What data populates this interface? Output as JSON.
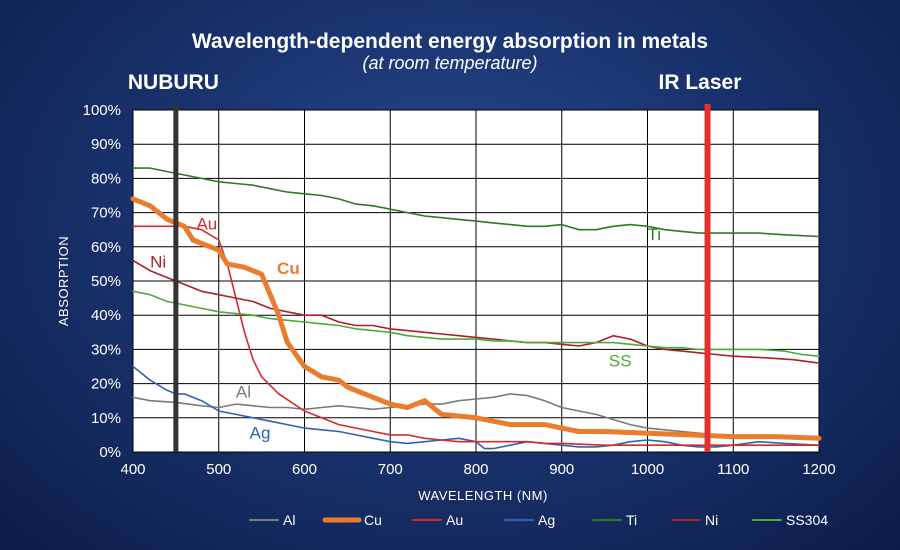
{
  "chart_data": {
    "type": "line",
    "title": "Wavelength-dependent energy absorption in metals",
    "subtitle": "(at room temperature)",
    "xlabel": "WAVELENGTH (NM)",
    "ylabel": "ABSORPTION",
    "xlim": [
      400,
      1200
    ],
    "ylim": [
      0,
      100
    ],
    "x_ticks": [
      "400",
      "500",
      "600",
      "700",
      "800",
      "900",
      "1000",
      "1100",
      "1200"
    ],
    "y_ticks": [
      "0%",
      "10%",
      "20%",
      "30%",
      "40%",
      "50%",
      "60%",
      "70%",
      "80%",
      "90%",
      "100%"
    ],
    "grid": true,
    "legend_position": "bottom",
    "markers": [
      {
        "label": "NUBURU",
        "x": 450,
        "color": "#333333"
      },
      {
        "label": "IR Laser",
        "x": 1070,
        "color": "#e03030"
      }
    ],
    "series": [
      {
        "name": "Al",
        "color": "#7a7a7a",
        "label_text": "Al",
        "label_at": [
          520,
          16
        ],
        "points": [
          [
            400,
            16
          ],
          [
            420,
            15
          ],
          [
            450,
            14.5
          ],
          [
            480,
            13.5
          ],
          [
            500,
            13
          ],
          [
            520,
            14
          ],
          [
            540,
            13.5
          ],
          [
            560,
            13
          ],
          [
            580,
            13
          ],
          [
            600,
            12.5
          ],
          [
            620,
            13
          ],
          [
            640,
            13.5
          ],
          [
            660,
            13
          ],
          [
            680,
            12.5
          ],
          [
            700,
            13
          ],
          [
            720,
            13.5
          ],
          [
            740,
            14
          ],
          [
            760,
            14
          ],
          [
            780,
            15
          ],
          [
            800,
            15.5
          ],
          [
            820,
            16
          ],
          [
            840,
            17
          ],
          [
            860,
            16.5
          ],
          [
            880,
            15
          ],
          [
            900,
            13
          ],
          [
            920,
            12
          ],
          [
            940,
            11
          ],
          [
            960,
            9.5
          ],
          [
            980,
            8
          ],
          [
            1000,
            7
          ],
          [
            1020,
            6.5
          ],
          [
            1040,
            6
          ],
          [
            1060,
            5.5
          ],
          [
            1080,
            5
          ],
          [
            1100,
            4.5
          ],
          [
            1120,
            4.5
          ],
          [
            1140,
            4.5
          ],
          [
            1160,
            4.5
          ],
          [
            1180,
            4
          ],
          [
            1200,
            4
          ]
        ]
      },
      {
        "name": "Cu",
        "color": "#ea7c2e",
        "label_text": "Cu",
        "label_at": [
          568,
          52
        ],
        "points": [
          [
            400,
            74
          ],
          [
            420,
            72
          ],
          [
            440,
            68
          ],
          [
            460,
            66
          ],
          [
            470,
            62
          ],
          [
            500,
            59
          ],
          [
            510,
            55
          ],
          [
            530,
            54
          ],
          [
            550,
            52
          ],
          [
            570,
            40
          ],
          [
            580,
            32
          ],
          [
            600,
            25
          ],
          [
            620,
            22
          ],
          [
            640,
            21
          ],
          [
            650,
            19
          ],
          [
            670,
            17
          ],
          [
            700,
            14
          ],
          [
            720,
            13
          ],
          [
            740,
            15
          ],
          [
            760,
            11
          ],
          [
            800,
            10
          ],
          [
            820,
            9
          ],
          [
            840,
            8
          ],
          [
            860,
            8
          ],
          [
            880,
            8
          ],
          [
            900,
            7
          ],
          [
            920,
            6
          ],
          [
            950,
            6
          ],
          [
            1000,
            5.5
          ],
          [
            1050,
            5
          ],
          [
            1100,
            4.5
          ],
          [
            1150,
            4.5
          ],
          [
            1200,
            4
          ]
        ]
      },
      {
        "name": "Au",
        "color": "#d42a2a",
        "label_text": "Au",
        "label_at": [
          474,
          65
        ],
        "points": [
          [
            400,
            66
          ],
          [
            420,
            66
          ],
          [
            440,
            66
          ],
          [
            460,
            66
          ],
          [
            480,
            65
          ],
          [
            500,
            62
          ],
          [
            510,
            55
          ],
          [
            520,
            45
          ],
          [
            530,
            35
          ],
          [
            540,
            27
          ],
          [
            550,
            22
          ],
          [
            570,
            17
          ],
          [
            600,
            12
          ],
          [
            620,
            10
          ],
          [
            640,
            8
          ],
          [
            660,
            7
          ],
          [
            680,
            6
          ],
          [
            700,
            5
          ],
          [
            720,
            5
          ],
          [
            740,
            4
          ],
          [
            760,
            3.5
          ],
          [
            780,
            3
          ],
          [
            800,
            3
          ],
          [
            820,
            3
          ],
          [
            840,
            3
          ],
          [
            860,
            3
          ],
          [
            880,
            2.5
          ],
          [
            900,
            2.5
          ],
          [
            950,
            2
          ],
          [
            1000,
            2
          ],
          [
            1050,
            2
          ],
          [
            1100,
            2
          ],
          [
            1150,
            2
          ],
          [
            1200,
            2
          ]
        ]
      },
      {
        "name": "Ag",
        "color": "#2e62b4",
        "label_text": "Ag",
        "label_at": [
          536,
          4
        ],
        "points": [
          [
            400,
            25
          ],
          [
            420,
            21
          ],
          [
            440,
            18
          ],
          [
            450,
            17
          ],
          [
            460,
            17
          ],
          [
            480,
            15
          ],
          [
            500,
            12
          ],
          [
            520,
            11
          ],
          [
            540,
            10
          ],
          [
            560,
            9
          ],
          [
            580,
            8
          ],
          [
            600,
            7
          ],
          [
            620,
            6.5
          ],
          [
            640,
            6
          ],
          [
            660,
            5
          ],
          [
            680,
            4
          ],
          [
            700,
            3
          ],
          [
            720,
            2.5
          ],
          [
            740,
            3
          ],
          [
            760,
            3.5
          ],
          [
            780,
            4
          ],
          [
            800,
            3
          ],
          [
            810,
            1
          ],
          [
            820,
            1
          ],
          [
            840,
            2
          ],
          [
            860,
            3
          ],
          [
            880,
            2.5
          ],
          [
            900,
            2
          ],
          [
            920,
            1.5
          ],
          [
            940,
            1.5
          ],
          [
            960,
            2
          ],
          [
            980,
            3
          ],
          [
            1000,
            3.5
          ],
          [
            1020,
            3
          ],
          [
            1040,
            2
          ],
          [
            1060,
            1.5
          ],
          [
            1080,
            1.5
          ],
          [
            1100,
            2
          ],
          [
            1130,
            3
          ],
          [
            1160,
            2.5
          ],
          [
            1200,
            2
          ]
        ]
      },
      {
        "name": "Ti",
        "color": "#2e7a24",
        "label_text": "Ti",
        "label_at": [
          1000,
          62
        ],
        "points": [
          [
            400,
            83
          ],
          [
            420,
            83
          ],
          [
            440,
            82
          ],
          [
            460,
            81
          ],
          [
            480,
            80
          ],
          [
            500,
            79
          ],
          [
            520,
            78.5
          ],
          [
            540,
            78
          ],
          [
            560,
            77
          ],
          [
            580,
            76
          ],
          [
            600,
            75.5
          ],
          [
            620,
            75
          ],
          [
            640,
            74
          ],
          [
            660,
            72.5
          ],
          [
            680,
            72
          ],
          [
            700,
            71
          ],
          [
            720,
            70
          ],
          [
            740,
            69
          ],
          [
            760,
            68.5
          ],
          [
            780,
            68
          ],
          [
            800,
            67.5
          ],
          [
            820,
            67
          ],
          [
            840,
            66.5
          ],
          [
            860,
            66
          ],
          [
            880,
            66
          ],
          [
            900,
            66.5
          ],
          [
            920,
            65
          ],
          [
            940,
            65
          ],
          [
            960,
            66
          ],
          [
            980,
            66.5
          ],
          [
            1000,
            66
          ],
          [
            1020,
            65
          ],
          [
            1040,
            64.5
          ],
          [
            1060,
            64
          ],
          [
            1080,
            64
          ],
          [
            1100,
            64
          ],
          [
            1130,
            64
          ],
          [
            1160,
            63.5
          ],
          [
            1200,
            63
          ]
        ]
      },
      {
        "name": "Ni",
        "color": "#b01e2a",
        "label_text": "Ni",
        "label_at": [
          420,
          54
        ],
        "points": [
          [
            400,
            56
          ],
          [
            420,
            53
          ],
          [
            440,
            51
          ],
          [
            460,
            49
          ],
          [
            480,
            47
          ],
          [
            500,
            46
          ],
          [
            520,
            45
          ],
          [
            540,
            44
          ],
          [
            560,
            42
          ],
          [
            580,
            41
          ],
          [
            600,
            40
          ],
          [
            620,
            40
          ],
          [
            640,
            38
          ],
          [
            660,
            37
          ],
          [
            680,
            37
          ],
          [
            700,
            36
          ],
          [
            720,
            35.5
          ],
          [
            740,
            35
          ],
          [
            760,
            34.5
          ],
          [
            780,
            34
          ],
          [
            800,
            33.5
          ],
          [
            820,
            33
          ],
          [
            840,
            32.5
          ],
          [
            860,
            32
          ],
          [
            880,
            32
          ],
          [
            900,
            31.5
          ],
          [
            920,
            31
          ],
          [
            940,
            32
          ],
          [
            960,
            34
          ],
          [
            980,
            33
          ],
          [
            1000,
            31
          ],
          [
            1020,
            30
          ],
          [
            1040,
            29.5
          ],
          [
            1060,
            29
          ],
          [
            1080,
            28.5
          ],
          [
            1100,
            28
          ],
          [
            1140,
            27.5
          ],
          [
            1170,
            27
          ],
          [
            1200,
            26
          ]
        ]
      },
      {
        "name": "SS304",
        "color": "#4fa83a",
        "label_text": "SS",
        "label_at": [
          955,
          25
        ],
        "points": [
          [
            400,
            47
          ],
          [
            420,
            46
          ],
          [
            440,
            44
          ],
          [
            460,
            43
          ],
          [
            480,
            42
          ],
          [
            500,
            41
          ],
          [
            520,
            40.5
          ],
          [
            540,
            40
          ],
          [
            560,
            39
          ],
          [
            580,
            38.5
          ],
          [
            600,
            38
          ],
          [
            620,
            37.5
          ],
          [
            640,
            37
          ],
          [
            660,
            36
          ],
          [
            680,
            35.5
          ],
          [
            700,
            35
          ],
          [
            720,
            34
          ],
          [
            740,
            33.5
          ],
          [
            760,
            33
          ],
          [
            780,
            33
          ],
          [
            800,
            33
          ],
          [
            820,
            32.5
          ],
          [
            840,
            32.5
          ],
          [
            860,
            32
          ],
          [
            880,
            32
          ],
          [
            900,
            32
          ],
          [
            920,
            32
          ],
          [
            940,
            32
          ],
          [
            960,
            32
          ],
          [
            980,
            31.5
          ],
          [
            1000,
            31
          ],
          [
            1020,
            30.5
          ],
          [
            1040,
            30.5
          ],
          [
            1060,
            30
          ],
          [
            1080,
            30
          ],
          [
            1100,
            30
          ],
          [
            1130,
            30
          ],
          [
            1160,
            29.5
          ],
          [
            1180,
            28.5
          ],
          [
            1200,
            28
          ]
        ]
      }
    ]
  }
}
